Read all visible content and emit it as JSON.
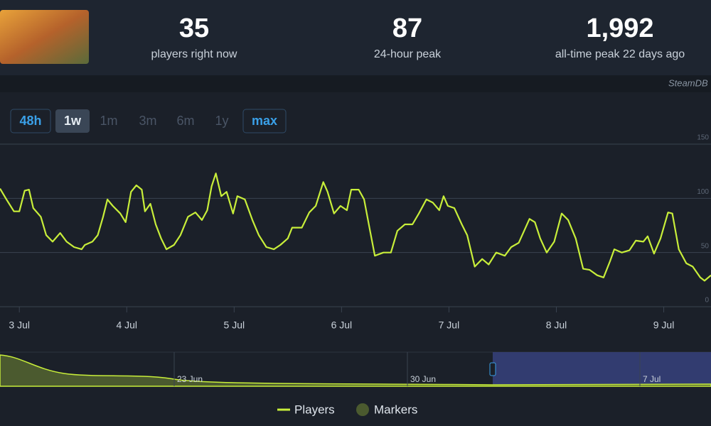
{
  "header": {
    "stats": [
      {
        "value": "35",
        "label": "players right now"
      },
      {
        "value": "87",
        "label": "24-hour peak"
      },
      {
        "value": "1,992",
        "label": "all-time peak 22 days ago"
      }
    ],
    "credit": "SteamDB"
  },
  "range_buttons": [
    "48h",
    "1w",
    "1m",
    "3m",
    "6m",
    "1y",
    "max"
  ],
  "chart_data": {
    "type": "line",
    "x": [
      2.82,
      2.88,
      2.95,
      3.0,
      3.05,
      3.09,
      3.13,
      3.2,
      3.25,
      3.31,
      3.38,
      3.44,
      3.51,
      3.58,
      3.61,
      3.68,
      3.73,
      3.78,
      3.82,
      3.87,
      3.94,
      3.99,
      4.04,
      4.09,
      4.14,
      4.17,
      4.22,
      4.27,
      4.32,
      4.37,
      4.44,
      4.5,
      4.57,
      4.64,
      4.7,
      4.75,
      4.79,
      4.83,
      4.88,
      4.93,
      4.99,
      5.03,
      5.1,
      5.17,
      5.23,
      5.3,
      5.37,
      5.43,
      5.5,
      5.54,
      5.63,
      5.7,
      5.76,
      5.83,
      5.87,
      5.93,
      5.99,
      6.05,
      6.09,
      6.16,
      6.21,
      6.26,
      6.31,
      6.39,
      6.46,
      6.52,
      6.59,
      6.66,
      6.72,
      6.79,
      6.85,
      6.91,
      6.95,
      6.99,
      7.05,
      7.12,
      7.17,
      7.24,
      7.31,
      7.37,
      7.44,
      7.52,
      7.58,
      7.65,
      7.7,
      7.75,
      7.8,
      7.85,
      7.91,
      7.98,
      8.05,
      8.11,
      8.18,
      8.25,
      8.31,
      8.38,
      8.44,
      8.5,
      8.54,
      8.61,
      8.68,
      8.74,
      8.81,
      8.85,
      8.91,
      8.97,
      9.04,
      9.08,
      9.14,
      9.21,
      9.27,
      9.34,
      9.38,
      9.44
    ],
    "series": [
      {
        "name": "Players",
        "color": "#c8ee3a",
        "values": [
          109,
          99,
          88,
          88,
          107,
          108,
          91,
          83,
          66,
          60,
          68,
          60,
          55,
          53,
          57,
          60,
          66,
          83,
          99,
          93,
          86,
          78,
          106,
          112,
          108,
          88,
          95,
          76,
          63,
          53,
          57,
          66,
          83,
          87,
          80,
          89,
          111,
          123,
          102,
          106,
          86,
          102,
          99,
          80,
          66,
          55,
          53,
          57,
          63,
          73,
          73,
          87,
          93,
          115,
          106,
          86,
          93,
          89,
          108,
          108,
          99,
          73,
          47,
          50,
          50,
          70,
          76,
          76,
          86,
          99,
          96,
          89,
          102,
          93,
          91,
          76,
          66,
          37,
          44,
          39,
          50,
          47,
          55,
          59,
          70,
          81,
          78,
          63,
          50,
          60,
          86,
          80,
          63,
          35,
          34,
          29,
          27,
          42,
          53,
          50,
          52,
          61,
          60,
          65,
          49,
          63,
          87,
          86,
          53,
          40,
          37,
          27,
          24,
          29
        ]
      }
    ],
    "markers_label": "Markers",
    "xlim": [
      2.82,
      9.44
    ],
    "xticks": [
      {
        "value": 3,
        "label": "3 Jul"
      },
      {
        "value": 4,
        "label": "4 Jul"
      },
      {
        "value": 5,
        "label": "5 Jul"
      },
      {
        "value": 6,
        "label": "6 Jul"
      },
      {
        "value": 7,
        "label": "7 Jul"
      },
      {
        "value": 8,
        "label": "8 Jul"
      },
      {
        "value": 9,
        "label": "9 Jul"
      }
    ],
    "ylim": [
      0,
      150
    ],
    "yticks": [
      0,
      50,
      100,
      150
    ],
    "grid": true
  },
  "navigator": {
    "labels": [
      "23 Jun",
      "30 Jun",
      "7 Jul"
    ]
  }
}
